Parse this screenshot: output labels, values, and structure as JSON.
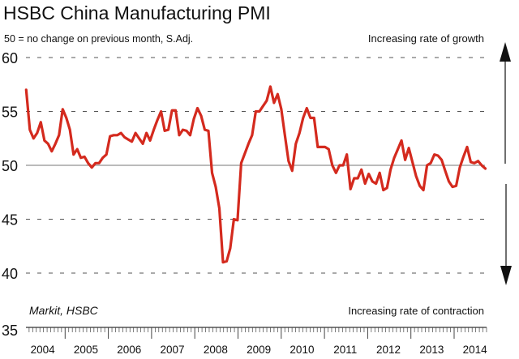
{
  "chart_data": {
    "type": "line",
    "title": "HSBC China Manufacturing PMI",
    "subtitle": "50 = no change on previous month, S.Adj.",
    "source": "Markit, HSBC",
    "annotation_top": "Increasing rate of growth",
    "annotation_bottom": "Increasing rate of contraction",
    "xlabel": "",
    "ylabel": "",
    "ylim": [
      35,
      60
    ],
    "yticks": [
      "60",
      "55",
      "50",
      "45",
      "40",
      "35"
    ],
    "ytick_values": [
      60,
      55,
      50,
      45,
      40,
      35
    ],
    "xlim": [
      2004.3,
      2014.95
    ],
    "xtick_labels": [
      "2004",
      "2005",
      "2006",
      "2007",
      "2008",
      "2009",
      "2010",
      "2011",
      "2012",
      "2013",
      "2014"
    ],
    "grid": "dashed horizontal",
    "reference_line": 50,
    "series": [
      {
        "name": "HSBC China Manufacturing PMI",
        "color": "#d42a1e",
        "x_start": 2004.1,
        "x_step_years": 0.0843,
        "values": [
          57.0,
          53.3,
          52.5,
          53.0,
          54.0,
          52.3,
          52.0,
          51.3,
          52.0,
          52.8,
          55.2,
          54.4,
          53.3,
          51.0,
          51.5,
          50.7,
          50.8,
          50.2,
          49.8,
          50.2,
          50.2,
          50.7,
          51.0,
          52.7,
          52.8,
          52.8,
          53.0,
          52.6,
          52.4,
          52.2,
          53.0,
          52.5,
          52.0,
          53.0,
          52.3,
          53.3,
          54.2,
          55.0,
          53.2,
          53.3,
          55.1,
          55.1,
          52.8,
          53.3,
          53.2,
          52.8,
          54.3,
          55.3,
          54.6,
          53.3,
          53.2,
          49.3,
          48.0,
          46.0,
          41.0,
          41.1,
          42.3,
          45.0,
          44.9,
          50.2,
          51.1,
          52.0,
          52.8,
          55.0,
          55.0,
          55.5,
          56.0,
          57.3,
          55.8,
          56.6,
          55.2,
          52.8,
          50.4,
          49.5,
          52.0,
          53.0,
          54.4,
          55.3,
          54.4,
          54.4,
          51.7,
          51.7,
          51.7,
          51.5,
          50.0,
          49.3,
          50.0,
          50.0,
          51.0,
          47.8,
          48.8,
          48.8,
          49.6,
          48.3,
          49.2,
          48.5,
          48.3,
          49.3,
          47.7,
          47.9,
          49.6,
          50.7,
          51.5,
          52.3,
          50.5,
          51.6,
          50.3,
          49.0,
          48.1,
          47.7,
          50.0,
          50.2,
          51.0,
          50.9,
          50.5,
          49.5,
          48.5,
          48.0,
          48.1,
          49.8,
          50.8,
          51.7,
          50.3,
          50.2,
          50.4,
          50.0,
          49.7
        ]
      }
    ]
  }
}
